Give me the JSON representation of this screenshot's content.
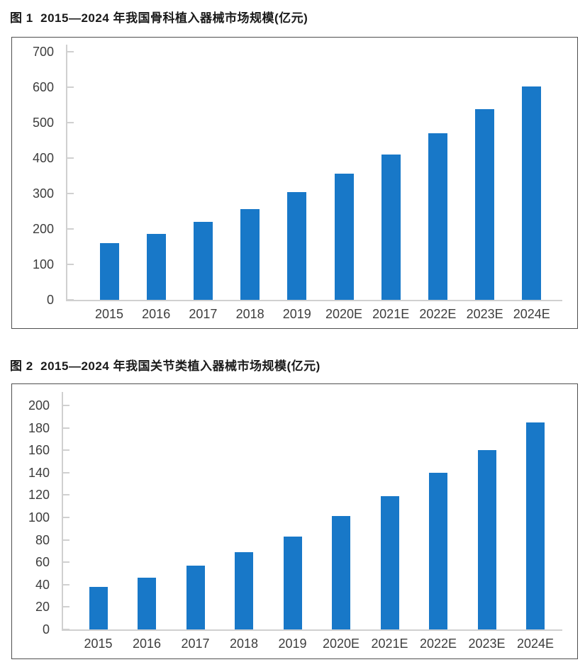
{
  "colors": {
    "bar": "#1878C8",
    "axis_line": "#D0D0D0",
    "tick_label": "#3D3D3D",
    "box_border": "#4F4F4F",
    "title_text": "#1A1A1A"
  },
  "chart_data": [
    {
      "type": "bar",
      "title": "图 1  2015—2024 年我国骨科植入器械市场规模(亿元)",
      "categories": [
        "2015",
        "2016",
        "2017",
        "2018",
        "2019",
        "2020E",
        "2021E",
        "2022E",
        "2023E",
        "2024E"
      ],
      "values": [
        160,
        187,
        221,
        257,
        304,
        356,
        410,
        471,
        538,
        602
      ],
      "xlabel": "",
      "ylabel": "",
      "unit": "亿元",
      "ylim": [
        0,
        700
      ],
      "ytick_step": 100,
      "yticks": [
        0,
        100,
        200,
        300,
        400,
        500,
        600,
        700
      ],
      "grid": false,
      "legend": null
    },
    {
      "type": "bar",
      "title": "图 2  2015—2024 年我国关节类植入器械市场规模(亿元)",
      "categories": [
        "2015",
        "2016",
        "2017",
        "2018",
        "2019",
        "2020E",
        "2021E",
        "2022E",
        "2023E",
        "2024E"
      ],
      "values": [
        38,
        46,
        57,
        69,
        83,
        101,
        119,
        140,
        160,
        185
      ],
      "xlabel": "",
      "ylabel": "",
      "unit": "亿元",
      "ylim": [
        0,
        200
      ],
      "ytick_step": 20,
      "yticks": [
        0,
        20,
        40,
        60,
        80,
        100,
        120,
        140,
        160,
        180,
        200
      ],
      "grid": false,
      "legend": null
    }
  ]
}
